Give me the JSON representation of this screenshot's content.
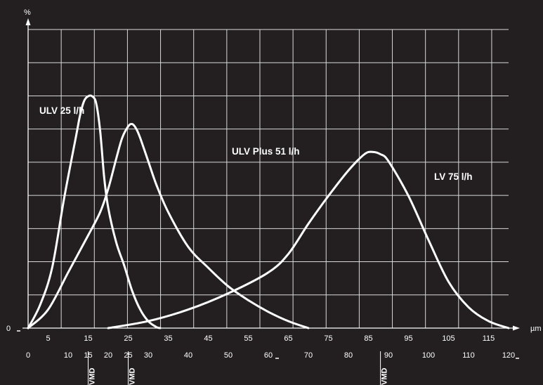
{
  "chart_data": {
    "type": "line",
    "title": "",
    "xlabel": "µm",
    "ylabel": "%",
    "y_origin_label": "0",
    "grid": true,
    "x_ticks_row1": [
      5,
      15,
      25,
      35,
      45,
      55,
      65,
      75,
      85,
      95,
      105,
      115
    ],
    "x_ticks_row2": [
      0,
      10,
      15,
      20,
      25,
      30,
      40,
      50,
      60,
      70,
      80,
      90,
      100,
      110,
      120
    ],
    "vmd_markers": [
      {
        "label": "VMD",
        "x": 15
      },
      {
        "label": "VMD",
        "x": 25
      },
      {
        "label": "VMD",
        "x": 88
      }
    ],
    "series": [
      {
        "name": "ULV 25 l/h",
        "points": [
          [
            0,
            0
          ],
          [
            3,
            10
          ],
          [
            6,
            26
          ],
          [
            9,
            56
          ],
          [
            12,
            83
          ],
          [
            13,
            92
          ],
          [
            14,
            98
          ],
          [
            15,
            100
          ],
          [
            16,
            100
          ],
          [
            17,
            97
          ],
          [
            18,
            85
          ],
          [
            19,
            65
          ],
          [
            20,
            52
          ],
          [
            22,
            37
          ],
          [
            24,
            27
          ],
          [
            26,
            16
          ],
          [
            28,
            8
          ],
          [
            30,
            3
          ],
          [
            32,
            0.5
          ],
          [
            33,
            0
          ]
        ]
      },
      {
        "name": "ULV Plus 51 l/h",
        "points": [
          [
            0,
            0
          ],
          [
            5,
            8
          ],
          [
            10,
            24
          ],
          [
            15,
            40
          ],
          [
            18,
            50
          ],
          [
            20,
            60
          ],
          [
            22,
            73
          ],
          [
            23.5,
            82
          ],
          [
            25,
            87
          ],
          [
            26,
            88
          ],
          [
            27,
            86
          ],
          [
            28,
            82
          ],
          [
            30,
            72
          ],
          [
            32,
            62
          ],
          [
            35,
            50
          ],
          [
            40,
            35
          ],
          [
            45,
            26
          ],
          [
            50,
            18
          ],
          [
            55,
            12
          ],
          [
            60,
            7
          ],
          [
            65,
            3
          ],
          [
            70,
            0
          ]
        ]
      },
      {
        "name": "LV 75 l/h",
        "points": [
          [
            20,
            0
          ],
          [
            30,
            3
          ],
          [
            40,
            8
          ],
          [
            50,
            15
          ],
          [
            60,
            24
          ],
          [
            65,
            32
          ],
          [
            70,
            45
          ],
          [
            75,
            57
          ],
          [
            80,
            68
          ],
          [
            84,
            75
          ],
          [
            86,
            76
          ],
          [
            88,
            75
          ],
          [
            90,
            72
          ],
          [
            95,
            57
          ],
          [
            100,
            38
          ],
          [
            105,
            20
          ],
          [
            110,
            9
          ],
          [
            115,
            3
          ],
          [
            120,
            0
          ]
        ]
      }
    ],
    "curve_labels": [
      "ULV 25 l/h",
      "ULV Plus 51 l/h",
      "LV 75 l/h"
    ]
  }
}
